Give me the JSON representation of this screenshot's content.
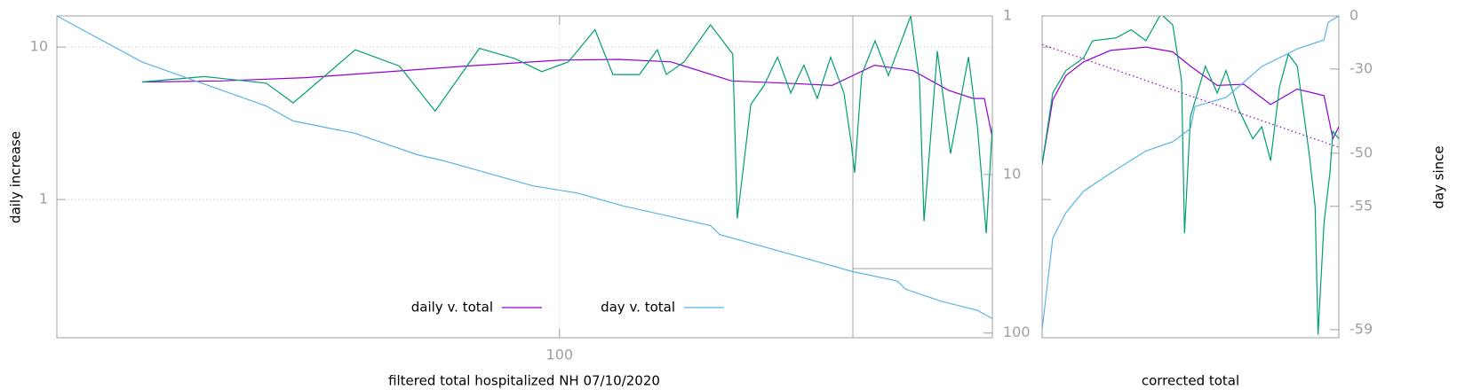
{
  "chart_data": [
    {
      "type": "line",
      "xlabel": "filtered total hospitalized NH 07/10/2020",
      "ylabel": "daily increase",
      "xlog": true,
      "ylog": true,
      "y2log": true,
      "xlim": [
        30.6,
        277.2
      ],
      "ylim": [
        0.124,
        16
      ],
      "y2lim": [
        107,
        1
      ],
      "xticks": [
        100
      ],
      "yticks": [
        1,
        10
      ],
      "y2ticks": [
        1,
        10,
        100
      ],
      "grid": true,
      "legend": "bottom",
      "series": [
        {
          "name": "daily v. total",
          "color": "#9400d3",
          "x": [
            37.4,
            45,
            55,
            65,
            80,
            100,
            115,
            130,
            150,
            170,
            190,
            210,
            230,
            250,
            265,
            272,
            277
          ],
          "values": [
            5.9,
            6.0,
            6.3,
            6.8,
            7.5,
            8.2,
            8.3,
            8.0,
            6.0,
            5.8,
            5.6,
            7.6,
            7.0,
            5.2,
            4.6,
            4.6,
            2.6
          ]
        },
        {
          "color": "#009e73",
          "x": [
            37.4,
            43.3,
            50.1,
            53.4,
            61.8,
            68.6,
            74.6,
            82.8,
            90.0,
            95.9,
            102.1,
            108.7,
            113.4,
            120.7,
            125.9,
            128.6,
            134.1,
            142.7,
            150.4,
            152.0,
            156.9,
            161.9,
            167.1,
            172.4,
            177.8,
            183.5,
            189.4,
            195.4,
            198.7,
            200.4,
            203.8,
            210.3,
            217.0,
            228.7,
            233.5,
            236.0,
            243.5,
            251.2,
            262.0,
            267.6,
            273.2,
            277.2
          ],
          "values": [
            5.9,
            6.4,
            5.8,
            4.3,
            9.6,
            7.5,
            3.8,
            9.8,
            8.4,
            6.9,
            8.0,
            13.0,
            6.6,
            6.6,
            9.6,
            6.6,
            8.0,
            14.0,
            9.0,
            0.75,
            4.2,
            5.6,
            8.6,
            5.0,
            7.6,
            4.6,
            8.6,
            5.0,
            2.4,
            1.5,
            6.6,
            11.0,
            6.5,
            16.0,
            6.0,
            0.72,
            9.4,
            2.0,
            8.6,
            3.0,
            0.6,
            3.0
          ]
        },
        {
          "name": "day v. total",
          "color": "#56b4e9",
          "axis": "y2",
          "x": [
            30.6,
            37.4,
            50.1,
            53.4,
            61.8,
            71.5,
            76.2,
            93.9,
            104.3,
            115.8,
            142.7,
            145.8,
            176.0,
            199.6,
            221.6,
            226.1,
            245.9,
            267.6,
            277.2
          ],
          "values": [
            1.0,
            1.95,
            3.7,
            4.6,
            5.5,
            7.5,
            8.2,
            11.8,
            13.1,
            15.7,
            21,
            23.9,
            33,
            41,
            47,
            53,
            63,
            72,
            81
          ]
        }
      ]
    },
    {
      "type": "line",
      "xlabel": "corrected total",
      "y2label": "day since",
      "ylog": true,
      "ytick_labels": false,
      "xlim": [
        0,
        100
      ],
      "ylim": [
        0.124,
        16
      ],
      "yticks": [
        1,
        10
      ],
      "y2lim": [
        -59.1,
        0
      ],
      "y2scale": "log",
      "y2offset": 60,
      "y2ticks": [
        0,
        -30,
        -50,
        -55,
        -59
      ],
      "series": [
        {
          "color": "#9400d3",
          "x": [
            0,
            3.6,
            8,
            14,
            23,
            35,
            44,
            50,
            59,
            68,
            77,
            86,
            95,
            98,
            100
          ],
          "values": [
            1.7,
            4.5,
            6.5,
            8.0,
            9.5,
            10.0,
            9.3,
            7.5,
            5.6,
            5.7,
            4.2,
            5.3,
            4.8,
            2.5,
            3.0
          ]
        },
        {
          "color": "#009e73",
          "x": [
            0,
            3.6,
            8,
            14,
            17,
            25,
            30,
            35,
            40,
            44,
            47,
            48,
            50,
            55,
            59,
            62,
            66,
            71,
            74,
            77,
            80,
            83,
            86,
            90,
            92,
            93,
            95,
            97,
            98,
            100
          ],
          "values": [
            1.7,
            5.0,
            7.0,
            8.5,
            11,
            11.5,
            13,
            11,
            16.5,
            14,
            6,
            0.6,
            3.5,
            7.5,
            5,
            7,
            4.0,
            2.5,
            3.0,
            1.8,
            5.5,
            9,
            7.5,
            2.0,
            0.9,
            0.13,
            0.7,
            1.5,
            2.8,
            2.5
          ]
        },
        {
          "color": "#56b4e9",
          "axis": "y2",
          "x": [
            0,
            3.6,
            8,
            14,
            23,
            35,
            44,
            50,
            51.5,
            62,
            74,
            86,
            95,
            96.4,
            100
          ],
          "values": [
            -59,
            -56.7,
            -55.4,
            -53.9,
            -52.3,
            -49.7,
            -48.4,
            -46.2,
            -41.6,
            -39.3,
            -29,
            -21,
            -16.1,
            -4.7,
            0
          ]
        },
        {
          "color": "#9400d3",
          "style": "dotted",
          "x": [
            0,
            100
          ],
          "values": [
            10.4,
            2.2
          ]
        }
      ]
    }
  ]
}
